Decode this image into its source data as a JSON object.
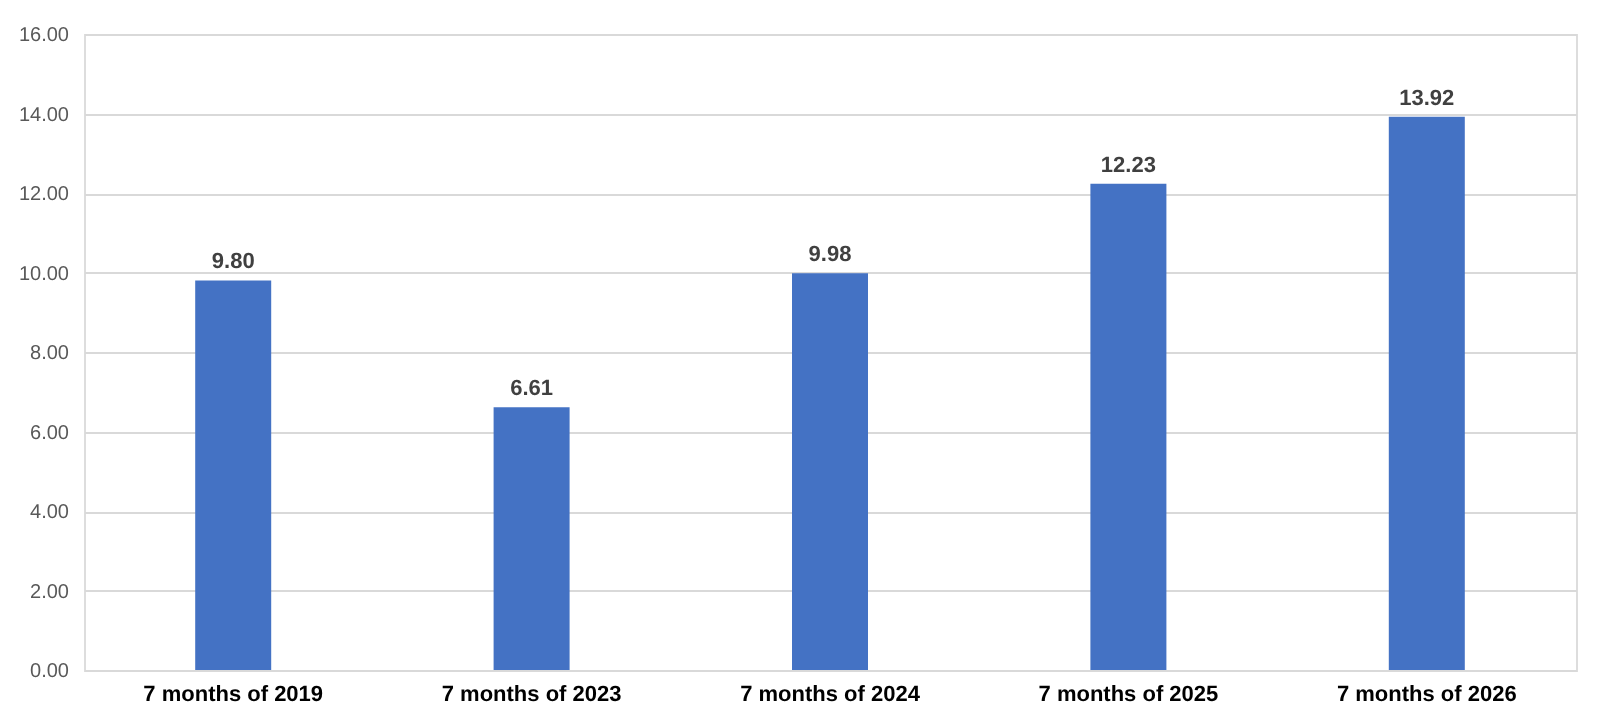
{
  "chart_data": {
    "type": "bar",
    "categories": [
      "7 months of 2019",
      "7 months of 2023",
      "7 months of 2024",
      "7 months of 2025",
      "7 months of 2026"
    ],
    "values": [
      9.8,
      6.61,
      9.98,
      12.23,
      13.92
    ],
    "value_labels": [
      "9.80",
      "6.61",
      "9.98",
      "12.23",
      "13.92"
    ],
    "color": "#4472c4",
    "ylim": [
      0,
      16
    ],
    "yticks": [
      {
        "value": 0,
        "label": "0.00"
      },
      {
        "value": 2,
        "label": "2.00"
      },
      {
        "value": 4,
        "label": "4.00"
      },
      {
        "value": 6,
        "label": "6.00"
      },
      {
        "value": 8,
        "label": "8.00"
      },
      {
        "value": 10,
        "label": "10.00"
      },
      {
        "value": 12,
        "label": "12.00"
      },
      {
        "value": 14,
        "label": "14.00"
      },
      {
        "value": 16,
        "label": "16.00"
      }
    ],
    "grid": "y"
  }
}
